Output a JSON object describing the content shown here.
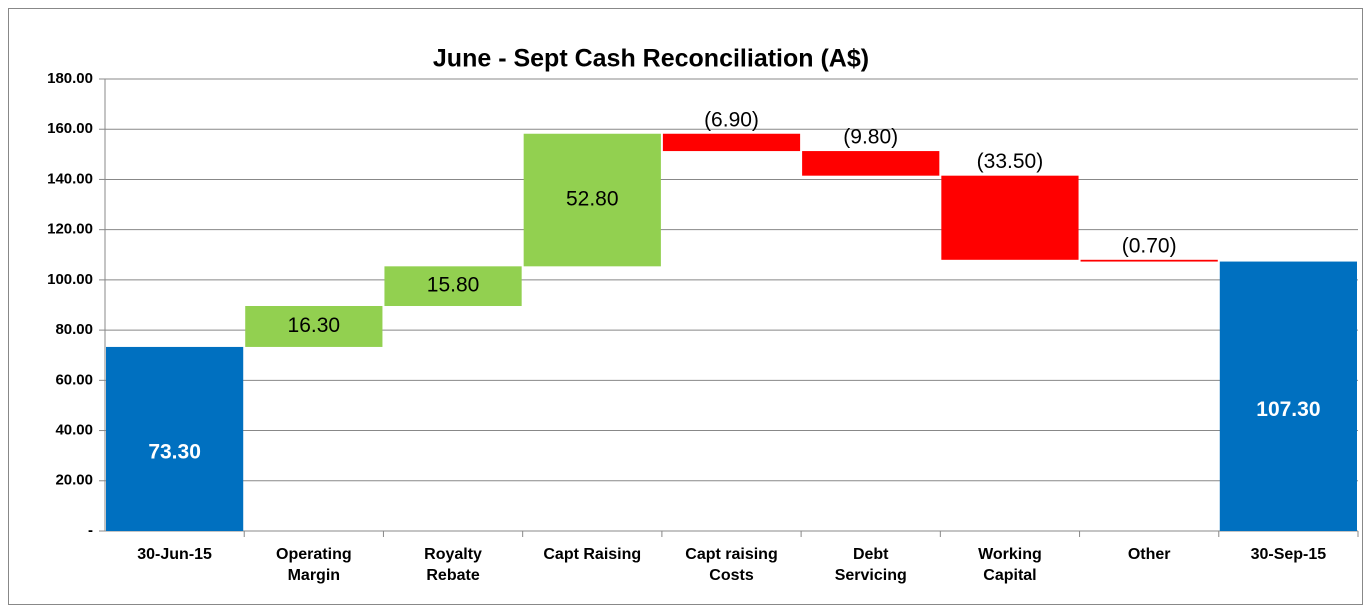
{
  "chart_data": {
    "type": "waterfall",
    "title": "June - Sept Cash Reconciliation (A$)",
    "categories": [
      "30-Jun-15",
      "Operating\nMargin",
      "Royalty\nRebate",
      "Capt Raising",
      "Capt raising\nCosts",
      "Debt\nServicing",
      "Working\nCapital",
      "Other",
      "30-Sep-15"
    ],
    "values": [
      73.3,
      16.3,
      15.8,
      52.8,
      -6.9,
      -9.8,
      -33.5,
      -0.7,
      107.3
    ],
    "value_labels": [
      "73.30",
      "16.30",
      "15.80",
      "52.80",
      "(6.90)",
      "(9.80)",
      "(33.50)",
      "(0.70)",
      "107.30"
    ],
    "colors": {
      "total": "#0070c0",
      "increase": "#92d050",
      "decrease": "#ff0000"
    },
    "ylim": [
      0,
      180
    ],
    "yticks": [
      {
        "value": 0,
        "label": "-"
      },
      {
        "value": 20,
        "label": "20.00"
      },
      {
        "value": 40,
        "label": "40.00"
      },
      {
        "value": 60,
        "label": "60.00"
      },
      {
        "value": 80,
        "label": "80.00"
      },
      {
        "value": 100,
        "label": "100.00"
      },
      {
        "value": 120,
        "label": "120.00"
      },
      {
        "value": 140,
        "label": "140.00"
      },
      {
        "value": 160,
        "label": "160.00"
      },
      {
        "value": 180,
        "label": "180.00"
      }
    ],
    "grid": true
  }
}
